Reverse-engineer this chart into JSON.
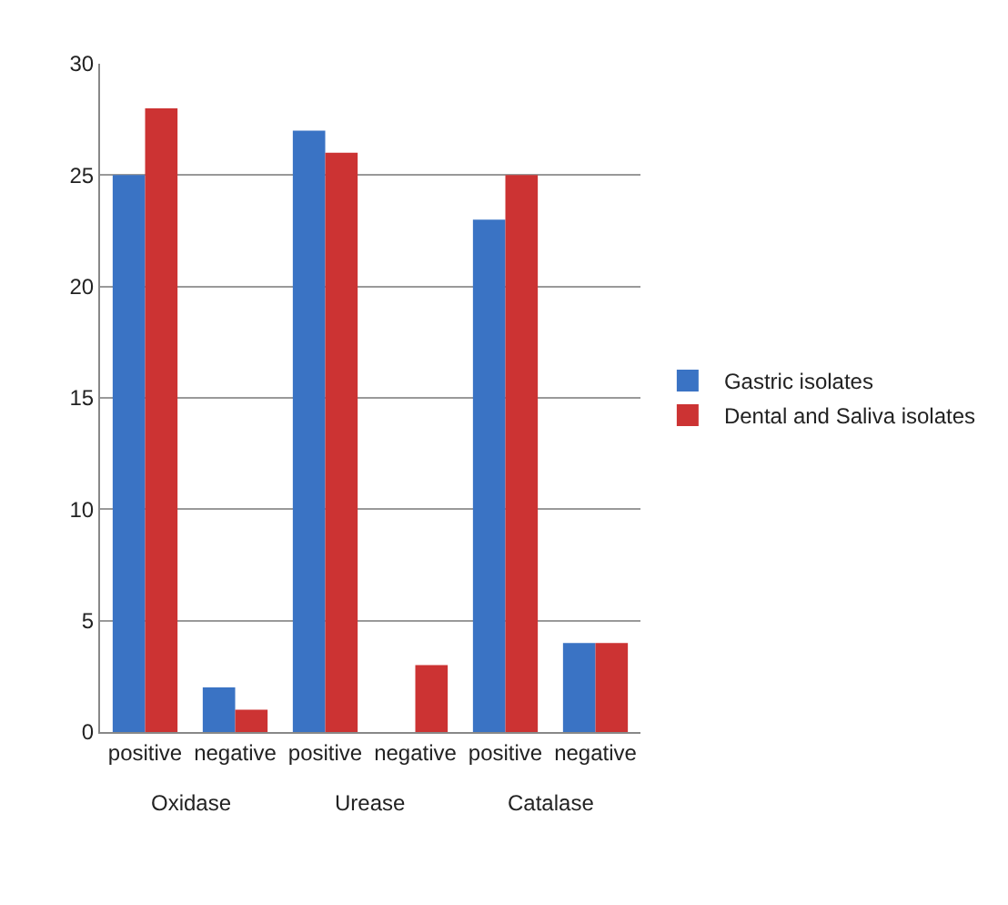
{
  "chart_data": {
    "type": "bar",
    "categories": [
      "positive",
      "negative",
      "positive",
      "negative",
      "positive",
      "negative"
    ],
    "series": [
      {
        "name": "Gastric isolates",
        "color": "#3a73c4",
        "values": [
          25,
          2,
          27,
          0,
          23,
          4
        ]
      },
      {
        "name": "Dental and Saliva isolates",
        "color": "#cc3333",
        "values": [
          28,
          1,
          26,
          3,
          25,
          4
        ]
      }
    ],
    "annotations": [
      "Oxidase",
      "Urease",
      "Catalase"
    ],
    "ylim": [
      0,
      30
    ],
    "yticks": [
      0,
      5,
      10,
      15,
      20,
      25,
      30
    ],
    "grid": "y",
    "legend": "right"
  }
}
